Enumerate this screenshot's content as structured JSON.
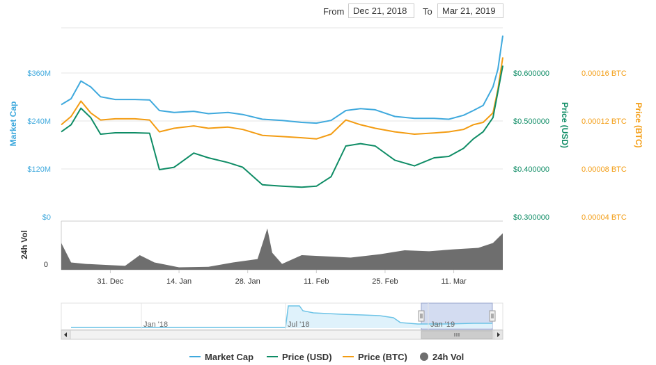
{
  "range": {
    "from_label": "From",
    "from_value": "Dec 21, 2018",
    "to_label": "To",
    "to_value": "Mar 21, 2019"
  },
  "colors": {
    "market_cap": "#3fa9dd",
    "price_usd": "#0e8c65",
    "price_btc": "#f39c12",
    "volume": "#6e6e6e",
    "nav_series": "#6cc3e6",
    "nav_window": "#c8d3ee",
    "grid": "#e6e6e6"
  },
  "chart_data": {
    "type": "line",
    "x_range": [
      "2018-12-21",
      "2019-03-21"
    ],
    "x_tick_labels": [
      "31. Dec",
      "14. Jan",
      "28. Jan",
      "11. Feb",
      "25. Feb",
      "11. Mar"
    ],
    "axes": {
      "market_cap": {
        "title": "Market Cap",
        "ticks": [
          "$0",
          "$120M",
          "$240M",
          "$360M"
        ],
        "ylim": [
          0,
          480
        ]
      },
      "price_usd": {
        "title": "Price (USD)",
        "ticks": [
          "$0.300000",
          "$0.400000",
          "$0.500000",
          "$0.600000"
        ],
        "ylim": [
          0.3,
          0.7
        ]
      },
      "price_btc": {
        "title": "Price (BTC)",
        "ticks": [
          "0.00004 BTC",
          "0.00008 BTC",
          "0.00012 BTC",
          "0.00016 BTC"
        ],
        "ylim": [
          4e-05,
          0.0002
        ]
      },
      "volume": {
        "title": "24h Vol",
        "ticks": [
          "0"
        ]
      }
    },
    "series": [
      {
        "name": "Market Cap",
        "unit": "USD millions",
        "x": [
          "2018-12-21",
          "2018-12-23",
          "2018-12-25",
          "2018-12-27",
          "2018-12-29",
          "2019-01-01",
          "2019-01-05",
          "2019-01-08",
          "2019-01-10",
          "2019-01-13",
          "2019-01-17",
          "2019-01-20",
          "2019-01-24",
          "2019-01-27",
          "2019-01-31",
          "2019-02-04",
          "2019-02-08",
          "2019-02-11",
          "2019-02-14",
          "2019-02-17",
          "2019-02-20",
          "2019-02-23",
          "2019-02-27",
          "2019-03-03",
          "2019-03-07",
          "2019-03-10",
          "2019-03-13",
          "2019-03-15",
          "2019-03-17",
          "2019-03-19",
          "2019-03-20",
          "2019-03-21"
        ],
        "values": [
          285,
          300,
          345,
          330,
          305,
          298,
          298,
          297,
          270,
          265,
          268,
          262,
          265,
          260,
          248,
          245,
          240,
          238,
          245,
          270,
          275,
          272,
          255,
          250,
          250,
          248,
          258,
          270,
          283,
          330,
          375,
          460
        ]
      },
      {
        "name": "Price (USD)",
        "unit": "USD",
        "x": [
          "2018-12-21",
          "2018-12-23",
          "2018-12-25",
          "2018-12-27",
          "2018-12-29",
          "2019-01-01",
          "2019-01-05",
          "2019-01-08",
          "2019-01-10",
          "2019-01-13",
          "2019-01-17",
          "2019-01-20",
          "2019-01-24",
          "2019-01-27",
          "2019-01-31",
          "2019-02-04",
          "2019-02-08",
          "2019-02-11",
          "2019-02-14",
          "2019-02-17",
          "2019-02-20",
          "2019-02-23",
          "2019-02-27",
          "2019-03-03",
          "2019-03-07",
          "2019-03-10",
          "2019-03-13",
          "2019-03-15",
          "2019-03-17",
          "2019-03-19",
          "2019-03-20",
          "2019-03-21"
        ],
        "values": [
          0.48,
          0.495,
          0.53,
          0.51,
          0.475,
          0.478,
          0.478,
          0.477,
          0.4,
          0.405,
          0.435,
          0.425,
          0.415,
          0.405,
          0.368,
          0.365,
          0.363,
          0.365,
          0.385,
          0.45,
          0.455,
          0.45,
          0.42,
          0.408,
          0.425,
          0.428,
          0.445,
          0.465,
          0.48,
          0.51,
          0.565,
          0.62
        ]
      },
      {
        "name": "Price (BTC)",
        "unit": "BTC",
        "x": [
          "2018-12-21",
          "2018-12-23",
          "2018-12-25",
          "2018-12-27",
          "2018-12-29",
          "2019-01-01",
          "2019-01-05",
          "2019-01-08",
          "2019-01-10",
          "2019-01-13",
          "2019-01-17",
          "2019-01-20",
          "2019-01-24",
          "2019-01-27",
          "2019-01-31",
          "2019-02-04",
          "2019-02-08",
          "2019-02-11",
          "2019-02-14",
          "2019-02-17",
          "2019-02-20",
          "2019-02-23",
          "2019-02-27",
          "2019-03-03",
          "2019-03-07",
          "2019-03-10",
          "2019-03-13",
          "2019-03-15",
          "2019-03-17",
          "2019-03-19",
          "2019-03-20",
          "2019-03-21"
        ],
        "values": [
          0.000118,
          0.000125,
          0.000138,
          0.000128,
          0.000122,
          0.000123,
          0.000123,
          0.000122,
          0.000112,
          0.000115,
          0.000117,
          0.000115,
          0.000116,
          0.000114,
          0.000109,
          0.000108,
          0.000107,
          0.000106,
          0.00011,
          0.000122,
          0.000118,
          0.000115,
          0.000112,
          0.00011,
          0.000111,
          0.000112,
          0.000114,
          0.000118,
          0.00012,
          0.000128,
          0.000148,
          0.000175
        ]
      },
      {
        "name": "24h Vol",
        "unit": "relative",
        "x": [
          "2018-12-21",
          "2018-12-23",
          "2018-12-26",
          "2018-12-30",
          "2019-01-03",
          "2019-01-06",
          "2019-01-09",
          "2019-01-14",
          "2019-01-20",
          "2019-01-25",
          "2019-01-30",
          "2019-02-01",
          "2019-02-02",
          "2019-02-04",
          "2019-02-08",
          "2019-02-12",
          "2019-02-18",
          "2019-02-24",
          "2019-03-01",
          "2019-03-06",
          "2019-03-11",
          "2019-03-16",
          "2019-03-19",
          "2019-03-21"
        ],
        "values": [
          0.55,
          0.15,
          0.12,
          0.1,
          0.08,
          0.3,
          0.15,
          0.05,
          0.06,
          0.15,
          0.22,
          0.85,
          0.35,
          0.12,
          0.3,
          0.28,
          0.25,
          0.32,
          0.4,
          0.38,
          0.42,
          0.45,
          0.55,
          0.75
        ]
      }
    ],
    "legend": {
      "position": "bottom-center",
      "items": [
        "Market Cap",
        "Price (USD)",
        "Price (BTC)",
        "24h Vol"
      ]
    },
    "navigator": {
      "x_tick_labels": [
        "Jan '18",
        "Jul '18",
        "Jan '19"
      ],
      "selected": [
        "2018-12-21",
        "2019-03-21"
      ]
    },
    "grid": true
  }
}
